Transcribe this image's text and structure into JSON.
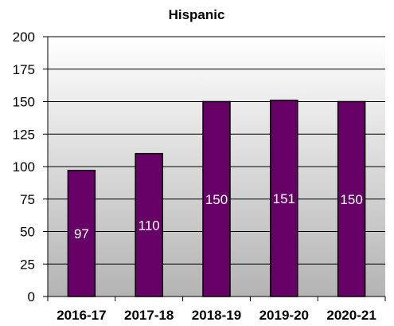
{
  "chart_data": {
    "type": "bar",
    "title": "Hispanic",
    "categories": [
      "2016-17",
      "2017-18",
      "2018-19",
      "2019-20",
      "2020-21"
    ],
    "values": [
      97,
      110,
      150,
      151,
      150
    ],
    "data_labels": [
      "97",
      "110",
      "150",
      "151",
      "150"
    ],
    "xlabel": "",
    "ylabel": "",
    "ylim": [
      0,
      200
    ],
    "yticks": [
      "0",
      "25",
      "50",
      "75",
      "100",
      "125",
      "150",
      "175",
      "200"
    ],
    "grid": true,
    "legend": "none",
    "colors": {
      "bar": "#660066",
      "bar_outline": "#000000",
      "plot_bg_top": "#ffffff",
      "plot_bg_bottom": "#b4b4b4",
      "gridline": "#000000"
    }
  }
}
